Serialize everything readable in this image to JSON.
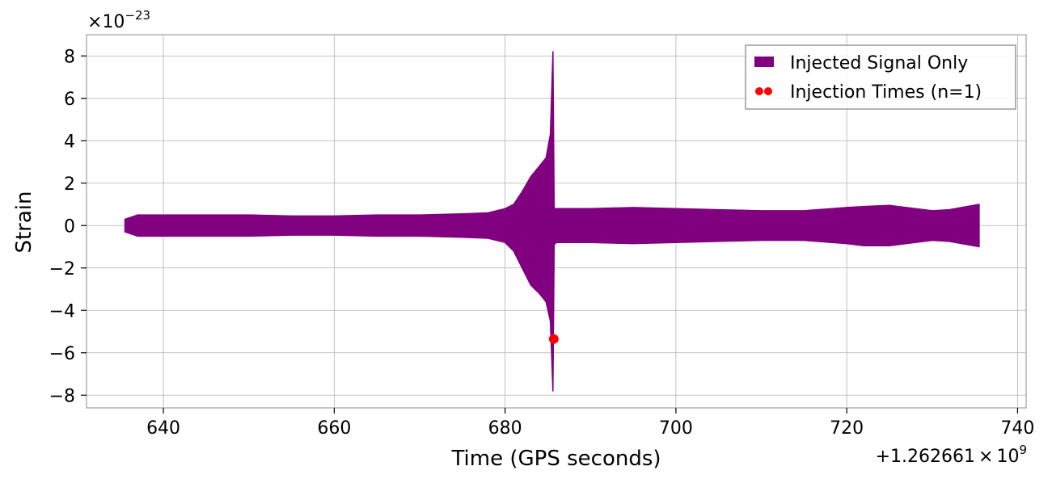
{
  "chart_data": {
    "type": "line",
    "title": "",
    "xlabel": "Time (GPS seconds)",
    "ylabel": "Strain",
    "x_offset_label": "+1.262661×10⁹",
    "x_offset_label_parts": {
      "prefix": "+1.262661",
      "times": "×",
      "base": "10",
      "exp": "9"
    },
    "y_scale_label_parts": {
      "times": "×",
      "base": "10",
      "exp": "−23"
    },
    "xlim": [
      631,
      741
    ],
    "ylim": [
      -8.6,
      9.0
    ],
    "x_ticks": [
      640,
      660,
      680,
      700,
      720,
      740
    ],
    "x_tick_labels": [
      "640",
      "660",
      "680",
      "700",
      "720",
      "740"
    ],
    "y_ticks": [
      8,
      6,
      4,
      2,
      0,
      -2,
      -4,
      -6,
      -8
    ],
    "y_tick_labels": [
      "8",
      "6",
      "4",
      "2",
      "0",
      "−2",
      "−4",
      "−6",
      "−8"
    ],
    "grid": true,
    "legend_position": "top-right",
    "series": [
      {
        "name": "Injected Signal Only",
        "kind": "band",
        "color": "#800080",
        "x": [
          635.5,
          637,
          640,
          645,
          650,
          655,
          660,
          665,
          670,
          675,
          678,
          680,
          681,
          682,
          683,
          684,
          684.8,
          685.3,
          685.6,
          685.75,
          686,
          687,
          690,
          695,
          700,
          705,
          710,
          715,
          720,
          722,
          725,
          728,
          730,
          732,
          735.5
        ],
        "upper": [
          0.3,
          0.5,
          0.5,
          0.5,
          0.5,
          0.45,
          0.45,
          0.5,
          0.5,
          0.55,
          0.6,
          0.8,
          1.0,
          1.6,
          2.3,
          2.8,
          3.2,
          4.3,
          8.2,
          0.8,
          0.8,
          0.8,
          0.8,
          0.85,
          0.8,
          0.75,
          0.7,
          0.7,
          0.85,
          0.9,
          0.95,
          0.8,
          0.7,
          0.75,
          1.0
        ],
        "lower": [
          -0.3,
          -0.5,
          -0.5,
          -0.5,
          -0.5,
          -0.45,
          -0.45,
          -0.5,
          -0.5,
          -0.55,
          -0.6,
          -0.8,
          -1.2,
          -2.0,
          -2.8,
          -3.2,
          -3.6,
          -4.5,
          -7.8,
          -0.9,
          -0.8,
          -0.8,
          -0.8,
          -0.85,
          -0.8,
          -0.75,
          -0.7,
          -0.7,
          -0.85,
          -0.95,
          -0.95,
          -0.8,
          -0.7,
          -0.75,
          -1.0
        ]
      },
      {
        "name": "Injection Times (n=1)",
        "kind": "scatter",
        "color": "#ff0000",
        "x": [
          685.7
        ],
        "y": [
          -5.35
        ]
      }
    ]
  }
}
